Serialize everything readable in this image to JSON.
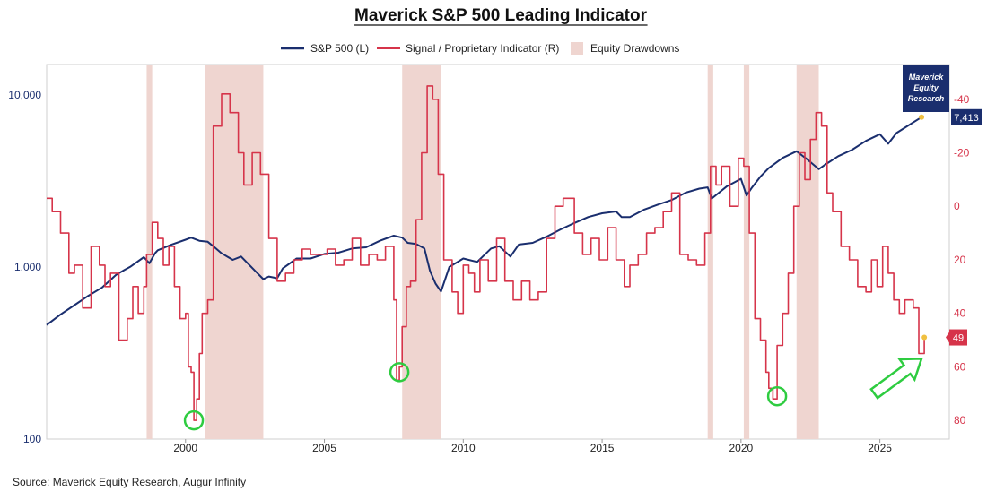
{
  "chart_data": {
    "type": "line",
    "title": "Maverick S&P 500 Leading Indicator",
    "source": "Source: Maverick Equity Research, Augur Infinity",
    "brand": [
      "Maverick",
      "Equity",
      "Research"
    ],
    "legend": [
      {
        "label": "S&P 500 (L)",
        "kind": "line",
        "color": "#1a2e6e"
      },
      {
        "label": "Signal / Proprietary Indicator (R)",
        "kind": "line",
        "color": "#d6344a"
      },
      {
        "label": "Equity Drawdowns",
        "kind": "box",
        "color": "#efd5d0"
      }
    ],
    "x_axis": {
      "range": [
        1995.0,
        2027.5
      ],
      "ticks": [
        2000,
        2005,
        2010,
        2015,
        2020,
        2025
      ]
    },
    "y_left": {
      "scale": "log",
      "range": [
        100,
        15000
      ],
      "ticks": [
        100,
        1000,
        10000
      ],
      "tick_labels": [
        "100",
        "1,000",
        "10,000"
      ],
      "color": "#1a2e6e"
    },
    "y_right": {
      "scale": "linear",
      "inverted": true,
      "range": [
        -53,
        87
      ],
      "ticks": [
        -40,
        -20,
        0,
        20,
        40,
        60,
        80
      ],
      "tick_labels": [
        "-40",
        "-20",
        "0",
        "20",
        "40",
        "60",
        "80"
      ],
      "color": "#d6344a"
    },
    "drawdowns": [
      [
        1998.6,
        1998.8
      ],
      [
        2000.7,
        2002.8
      ],
      [
        2007.8,
        2009.2
      ],
      [
        2018.8,
        2019.0
      ],
      [
        2020.1,
        2020.3
      ],
      [
        2022.0,
        2022.8
      ]
    ],
    "badges": {
      "sp500_last": "7,413",
      "signal_last": "49"
    },
    "series": [
      {
        "name": "S&P 500 (L)",
        "axis": "left",
        "color": "#1a2e6e",
        "x": [
          1995.0,
          1995.5,
          1996.0,
          1996.5,
          1997.0,
          1997.5,
          1997.8,
          1998.0,
          1998.5,
          1998.7,
          1998.9,
          1999.0,
          1999.5,
          2000.0,
          2000.2,
          2000.5,
          2000.8,
          2001.0,
          2001.3,
          2001.7,
          2002.0,
          2002.5,
          2002.8,
          2003.0,
          2003.3,
          2003.5,
          2004.0,
          2004.5,
          2005.0,
          2005.5,
          2006.0,
          2006.5,
          2007.0,
          2007.5,
          2007.8,
          2008.0,
          2008.3,
          2008.6,
          2008.8,
          2009.0,
          2009.2,
          2009.5,
          2010.0,
          2010.5,
          2011.0,
          2011.3,
          2011.7,
          2012.0,
          2012.5,
          2013.0,
          2013.5,
          2014.0,
          2014.5,
          2015.0,
          2015.5,
          2015.7,
          2016.0,
          2016.5,
          2017.0,
          2017.5,
          2018.0,
          2018.5,
          2018.8,
          2018.95,
          2019.5,
          2020.0,
          2020.2,
          2020.4,
          2020.7,
          2021.0,
          2021.5,
          2022.0,
          2022.4,
          2022.8,
          2023.0,
          2023.5,
          2024.0,
          2024.5,
          2025.0,
          2025.3,
          2025.6,
          2026.0,
          2026.5
        ],
        "values": [
          460,
          530,
          600,
          680,
          760,
          900,
          960,
          1000,
          1140,
          1050,
          1200,
          1250,
          1350,
          1440,
          1480,
          1420,
          1400,
          1320,
          1200,
          1100,
          1150,
          950,
          850,
          880,
          860,
          980,
          1120,
          1120,
          1190,
          1210,
          1280,
          1300,
          1420,
          1520,
          1480,
          1380,
          1360,
          1280,
          950,
          800,
          720,
          1000,
          1120,
          1070,
          1280,
          1320,
          1150,
          1350,
          1380,
          1500,
          1650,
          1800,
          1950,
          2050,
          2100,
          1950,
          1950,
          2150,
          2300,
          2450,
          2700,
          2850,
          2900,
          2500,
          2950,
          3250,
          2600,
          2900,
          3350,
          3750,
          4300,
          4700,
          4200,
          3700,
          3900,
          4400,
          4800,
          5400,
          5900,
          5200,
          6000,
          6600,
          7413
        ]
      },
      {
        "name": "Signal / Proprietary Indicator (R)",
        "axis": "right",
        "color": "#d6344a",
        "x": [
          1995.0,
          1995.2,
          1995.5,
          1995.8,
          1996.0,
          1996.3,
          1996.6,
          1996.9,
          1997.1,
          1997.3,
          1997.6,
          1997.9,
          1998.1,
          1998.3,
          1998.5,
          1998.6,
          1998.8,
          1999.0,
          1999.2,
          1999.4,
          1999.6,
          1999.8,
          2000.0,
          2000.1,
          2000.2,
          2000.3,
          2000.4,
          2000.5,
          2000.6,
          2000.8,
          2001.0,
          2001.3,
          2001.6,
          2001.9,
          2002.1,
          2002.4,
          2002.7,
          2003.0,
          2003.3,
          2003.6,
          2003.9,
          2004.2,
          2004.5,
          2004.8,
          2005.1,
          2005.4,
          2005.7,
          2006.0,
          2006.3,
          2006.6,
          2006.9,
          2007.2,
          2007.5,
          2007.6,
          2007.7,
          2007.8,
          2007.95,
          2008.1,
          2008.3,
          2008.5,
          2008.7,
          2008.9,
          2009.1,
          2009.3,
          2009.6,
          2009.8,
          2010.0,
          2010.2,
          2010.4,
          2010.6,
          2010.9,
          2011.2,
          2011.5,
          2011.8,
          2012.1,
          2012.4,
          2012.7,
          2013.0,
          2013.3,
          2013.6,
          2014.0,
          2014.3,
          2014.6,
          2014.9,
          2015.2,
          2015.5,
          2015.8,
          2016.0,
          2016.3,
          2016.6,
          2016.9,
          2017.2,
          2017.5,
          2017.8,
          2018.1,
          2018.4,
          2018.7,
          2018.9,
          2019.1,
          2019.3,
          2019.6,
          2019.9,
          2020.1,
          2020.3,
          2020.5,
          2020.7,
          2020.9,
          2021.0,
          2021.15,
          2021.3,
          2021.5,
          2021.7,
          2021.9,
          2022.1,
          2022.3,
          2022.5,
          2022.7,
          2022.9,
          2023.1,
          2023.3,
          2023.6,
          2023.9,
          2024.2,
          2024.5,
          2024.7,
          2024.9,
          2025.1,
          2025.3,
          2025.5,
          2025.7,
          2025.9,
          2026.2,
          2026.4,
          2026.6
        ],
        "values": [
          -3,
          2,
          10,
          25,
          22,
          38,
          15,
          22,
          30,
          25,
          50,
          42,
          30,
          40,
          30,
          18,
          6,
          12,
          22,
          15,
          30,
          42,
          40,
          60,
          62,
          80,
          72,
          55,
          40,
          35,
          -30,
          -42,
          -35,
          -20,
          -8,
          -20,
          -12,
          12,
          28,
          25,
          20,
          16,
          18,
          18,
          16,
          22,
          20,
          12,
          22,
          18,
          20,
          15,
          35,
          65,
          60,
          45,
          30,
          28,
          5,
          -20,
          -45,
          -40,
          -12,
          20,
          32,
          40,
          22,
          25,
          32,
          20,
          28,
          12,
          28,
          35,
          28,
          35,
          32,
          12,
          0,
          -3,
          10,
          18,
          12,
          20,
          8,
          20,
          30,
          22,
          18,
          10,
          8,
          2,
          -5,
          18,
          20,
          22,
          10,
          -15,
          -8,
          -15,
          0,
          -18,
          -15,
          10,
          42,
          50,
          62,
          68,
          72,
          52,
          40,
          25,
          0,
          -20,
          -10,
          -25,
          -35,
          -30,
          -5,
          2,
          15,
          20,
          30,
          32,
          20,
          30,
          15,
          25,
          35,
          40,
          35,
          38,
          55,
          49
        ]
      }
    ],
    "highlights": [
      {
        "x": 2000.3,
        "y": 80,
        "kind": "circle"
      },
      {
        "x": 2007.7,
        "y": 62,
        "kind": "circle"
      },
      {
        "x": 2021.3,
        "y": 71,
        "kind": "circle"
      }
    ],
    "arrow": {
      "from": [
        2024.8,
        70
      ],
      "to": [
        2026.5,
        57
      ],
      "color": "#2ecc40"
    }
  }
}
